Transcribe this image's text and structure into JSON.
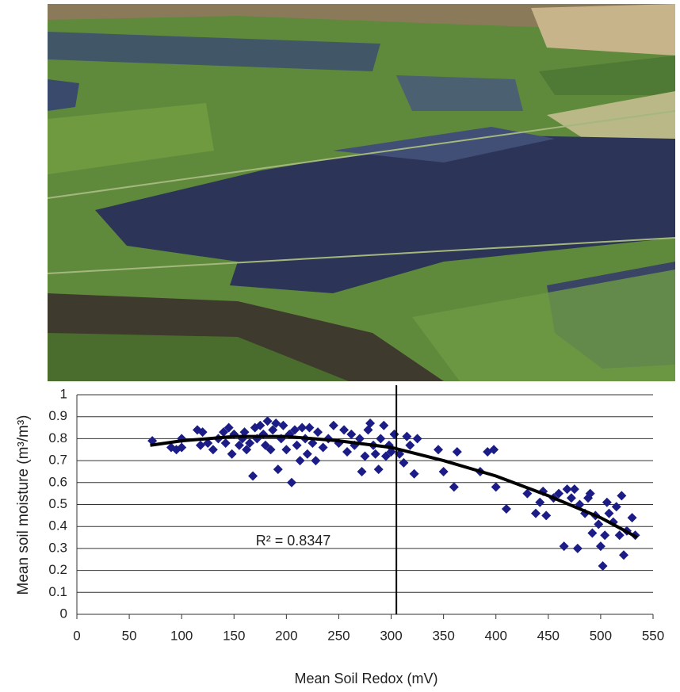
{
  "chart_data": {
    "type": "scatter",
    "xlabel": "Mean Soil Redox (mV)",
    "ylabel": "Mean soil moisture (m³/m³)",
    "annotation": "R² = 0.8347",
    "color": "#1c1c86",
    "x": [
      72,
      90,
      95,
      100,
      100,
      115,
      118,
      120,
      125,
      130,
      135,
      140,
      142,
      145,
      148,
      150,
      155,
      158,
      160,
      162,
      165,
      168,
      170,
      172,
      175,
      178,
      180,
      182,
      185,
      187,
      190,
      192,
      195,
      197,
      200,
      203,
      205,
      208,
      210,
      213,
      215,
      218,
      220,
      222,
      225,
      228,
      230,
      235,
      240,
      245,
      250,
      255,
      258,
      262,
      265,
      270,
      272,
      275,
      278,
      280,
      283,
      285,
      288,
      290,
      293,
      295,
      298,
      300,
      303,
      308,
      312,
      315,
      318,
      322,
      325,
      345,
      350,
      360,
      363,
      385,
      392,
      398,
      400,
      410,
      430,
      438,
      442,
      445,
      448,
      455,
      460,
      465,
      468,
      472,
      475,
      478,
      480,
      485,
      488,
      490,
      492,
      495,
      498,
      500,
      502,
      504,
      506,
      508,
      512,
      515,
      518,
      520,
      522,
      525,
      530,
      533
    ],
    "values": [
      0.79,
      0.76,
      0.75,
      0.8,
      0.76,
      0.84,
      0.77,
      0.83,
      0.78,
      0.75,
      0.8,
      0.83,
      0.78,
      0.85,
      0.73,
      0.82,
      0.77,
      0.8,
      0.83,
      0.75,
      0.78,
      0.63,
      0.85,
      0.8,
      0.86,
      0.82,
      0.77,
      0.88,
      0.75,
      0.84,
      0.87,
      0.66,
      0.8,
      0.86,
      0.75,
      0.82,
      0.6,
      0.84,
      0.77,
      0.7,
      0.85,
      0.8,
      0.73,
      0.85,
      0.78,
      0.7,
      0.83,
      0.76,
      0.8,
      0.86,
      0.78,
      0.84,
      0.74,
      0.82,
      0.77,
      0.8,
      0.65,
      0.72,
      0.84,
      0.87,
      0.77,
      0.73,
      0.66,
      0.8,
      0.86,
      0.72,
      0.77,
      0.74,
      0.82,
      0.73,
      0.69,
      0.81,
      0.77,
      0.64,
      0.8,
      0.75,
      0.65,
      0.58,
      0.74,
      0.65,
      0.74,
      0.75,
      0.58,
      0.48,
      0.55,
      0.46,
      0.51,
      0.56,
      0.45,
      0.53,
      0.55,
      0.31,
      0.57,
      0.53,
      0.57,
      0.3,
      0.5,
      0.46,
      0.53,
      0.55,
      0.37,
      0.45,
      0.41,
      0.31,
      0.22,
      0.36,
      0.51,
      0.46,
      0.42,
      0.49,
      0.36,
      0.54,
      0.27,
      0.38,
      0.44,
      0.36
    ],
    "trendline": {
      "color": "#000000",
      "x": [
        70,
        100,
        150,
        200,
        250,
        300,
        350,
        400,
        450,
        500,
        535
      ],
      "values": [
        0.77,
        0.79,
        0.81,
        0.81,
        0.79,
        0.76,
        0.7,
        0.63,
        0.54,
        0.44,
        0.35
      ]
    },
    "vline": 305,
    "xlim": [
      0,
      550
    ],
    "xticks": [
      0,
      50,
      100,
      150,
      200,
      250,
      300,
      350,
      400,
      450,
      500,
      550
    ],
    "ylim": [
      0,
      1
    ],
    "yticks": [
      0,
      0.1,
      0.2,
      0.3,
      0.4,
      0.5,
      0.6,
      0.7,
      0.8,
      0.9,
      1
    ],
    "grid": true
  }
}
